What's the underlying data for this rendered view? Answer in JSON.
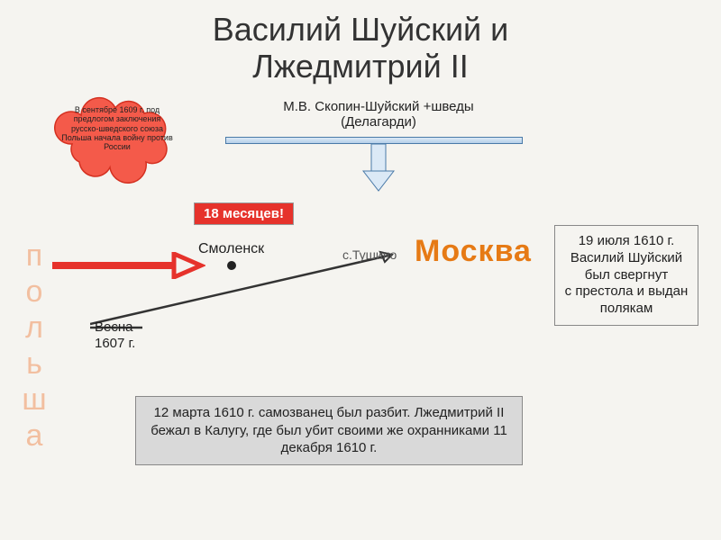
{
  "title": "Василий Шуйский и\nЛжедмитрий II",
  "cloud": {
    "text": "В сентябре 1609 г. под предлогом заключения русско-шведского союза Польша начала войну против России",
    "fill": "#f45a4a",
    "stroke": "#d43020"
  },
  "skopin": {
    "line1": "М.В. Скопин-Шуйский +шведы",
    "line2": "(Делагарди)"
  },
  "badge18": "18 месяцев!",
  "polska": "польша",
  "smolensk": "Смоленск",
  "tushino": "с.Тушино",
  "moscow": "Москва",
  "spring": "Весна\n1607 г.",
  "rightBox": "19 июля 1610 г.\nВасилий Шуйский\nбыл свергнут\nс престола и выдан полякам",
  "bottomBox": "12 марта 1610 г. самозванец был разбит. Лжедмитрий II бежал в Калугу, где был убит своими же охранниками 11 декабря 1610 г.",
  "colors": {
    "red": "#e6322b",
    "orange": "#e67a15",
    "blueBar": "#b5cfe8",
    "blueStroke": "#4a7aa8",
    "arrowDark": "#333333",
    "background": "#f5f4f0",
    "grayBox": "#d9d9d9"
  }
}
